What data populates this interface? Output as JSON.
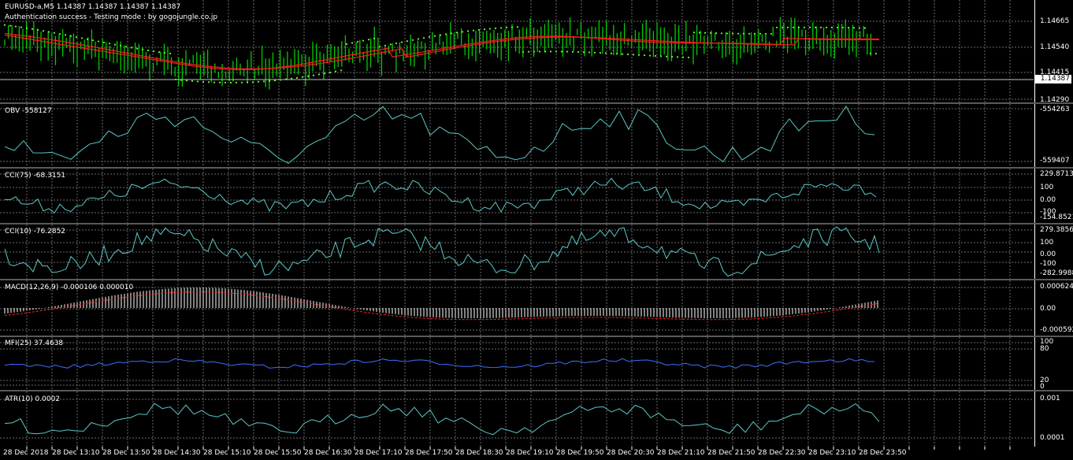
{
  "symbol_line": "EURUSD-a,M5  1.14387 1.14387 1.14387 1.14387",
  "status_line": "Authentication success - Testing mode : by gogojungle.co.jp",
  "current_price_tag": "1.14387",
  "colors": {
    "background": "#000000",
    "grid": "#6b6b6b",
    "candles": "#00cc00",
    "moving_average": "#ff1a1a",
    "parabolic_sar": "#66ff33",
    "oscillator_line": "#5cc8c8",
    "mfi_line": "#3d6fff",
    "macd_hist": "#ffffff",
    "macd_signal": "#ff2020"
  },
  "panes": [
    {
      "id": "price",
      "label": "",
      "scale": [
        "1.14665",
        "1.14540",
        "1.14415",
        "1.14290"
      ]
    },
    {
      "id": "obv",
      "label": "OBV -558127",
      "scale": [
        "-554263",
        "-559407"
      ]
    },
    {
      "id": "cci75",
      "label": "CCI(75) -68.3151",
      "scale": [
        "229.8713",
        "100",
        "0.00",
        "-100",
        "-154.8521"
      ]
    },
    {
      "id": "cci10",
      "label": "CCI(10) -76.2852",
      "scale": [
        "279.3856",
        "100",
        "0.00",
        "-100",
        "-282.9988"
      ]
    },
    {
      "id": "macd",
      "label": "MACD(12,26,9) -0.000106 0.000010",
      "scale": [
        "0.000624",
        "0.00",
        "-0.000592"
      ]
    },
    {
      "id": "mfi",
      "label": "MFI(25) 37.4638",
      "scale": [
        "100",
        "80",
        "20",
        "0"
      ]
    },
    {
      "id": "atr",
      "label": "ATR(10) 0.0002",
      "scale": [
        "0.001",
        "0.0001"
      ]
    }
  ],
  "time_axis": [
    "28 Dec 2018",
    "28 Dec 13:10",
    "28 Dec 13:50",
    "28 Dec 14:30",
    "28 Dec 15:10",
    "28 Dec 15:50",
    "28 Dec 16:30",
    "28 Dec 17:10",
    "28 Dec 17:50",
    "28 Dec 18:30",
    "28 Dec 19:10",
    "28 Dec 19:50",
    "28 Dec 20:30",
    "28 Dec 21:10",
    "28 Dec 21:50",
    "28 Dec 22:30",
    "28 Dec 23:10",
    "28 Dec 23:50"
  ]
}
